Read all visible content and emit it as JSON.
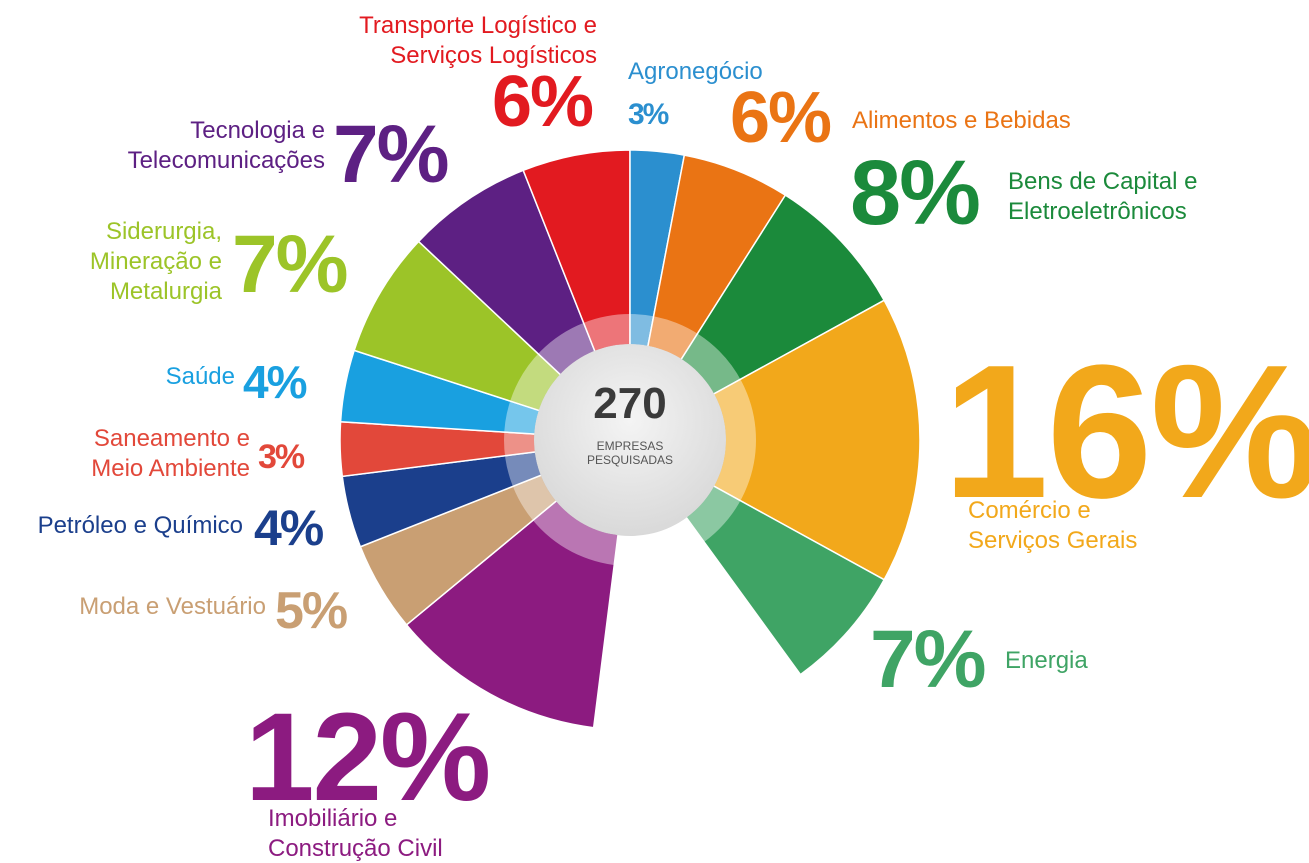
{
  "chart_data": {
    "type": "pie",
    "categories": [
      "Imobiliário e\nConstrução Civil",
      "Moda e Vestuário",
      "Petróleo e Químico",
      "Saneamento e\nMeio Ambiente",
      "Saúde",
      "Siderurgia,\nMineração e\nMetalurgia",
      "Tecnologia e\nTelecomunicações",
      "Transporte Logístico e\nServiços Logísticos",
      "Agronegócio",
      "Alimentos e Bebidas",
      "Bens de Capital e\nEletroeletrônicos",
      "Comércio e\nServiços Gerais",
      "Energia"
    ],
    "values": [
      12,
      5,
      4,
      3,
      4,
      7,
      7,
      6,
      3,
      6,
      8,
      16,
      7
    ],
    "value_labels": [
      "12%",
      "5%",
      "4%",
      "3%",
      "4%",
      "7%",
      "7%",
      "6%",
      "3%",
      "6%",
      "8%",
      "16%",
      "7%"
    ],
    "colors": [
      "#8c1b80",
      "#c99f73",
      "#1b3f8c",
      "#e2483a",
      "#19a0e0",
      "#9cc428",
      "#5d2083",
      "#e21a20",
      "#2b8fcf",
      "#ea7414",
      "#1b8a3b",
      "#f2a81b",
      "#3fa465"
    ],
    "center_value": 270,
    "center_text": "EMPRESAS\nPESQUISADAS"
  }
}
